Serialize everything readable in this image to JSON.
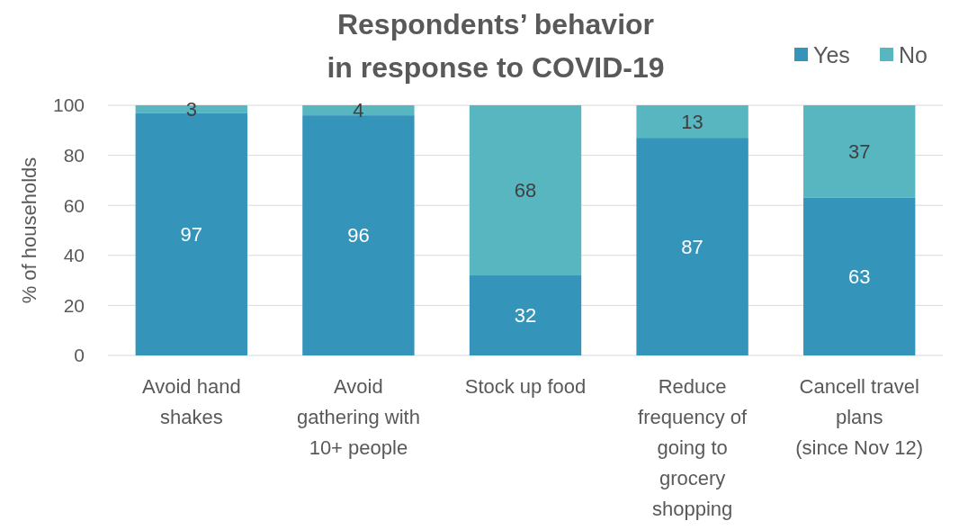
{
  "chart_data": {
    "type": "bar",
    "title": "Respondents’ behavior\nin response to COVID-19",
    "ylabel": "% of households",
    "categories": [
      "Avoid hand\nshakes",
      "Avoid\ngathering with\n10+ people",
      "Stock up food",
      "Reduce\nfrequency of\ngoing to\ngrocery\nshopping",
      "Cancell travel\nplans\n(since Nov 12)"
    ],
    "series": [
      {
        "name": "Yes",
        "color": "#3494ba",
        "values": [
          97,
          96,
          32,
          87,
          63
        ]
      },
      {
        "name": "No",
        "color": "#58b6c0",
        "values": [
          3,
          4,
          68,
          13,
          37
        ]
      }
    ],
    "stacked": true,
    "ylim": [
      0,
      100
    ],
    "yticks": [
      0,
      20,
      40,
      60,
      80,
      100
    ],
    "grid": "y",
    "legend": "top right",
    "data_labels": true
  }
}
